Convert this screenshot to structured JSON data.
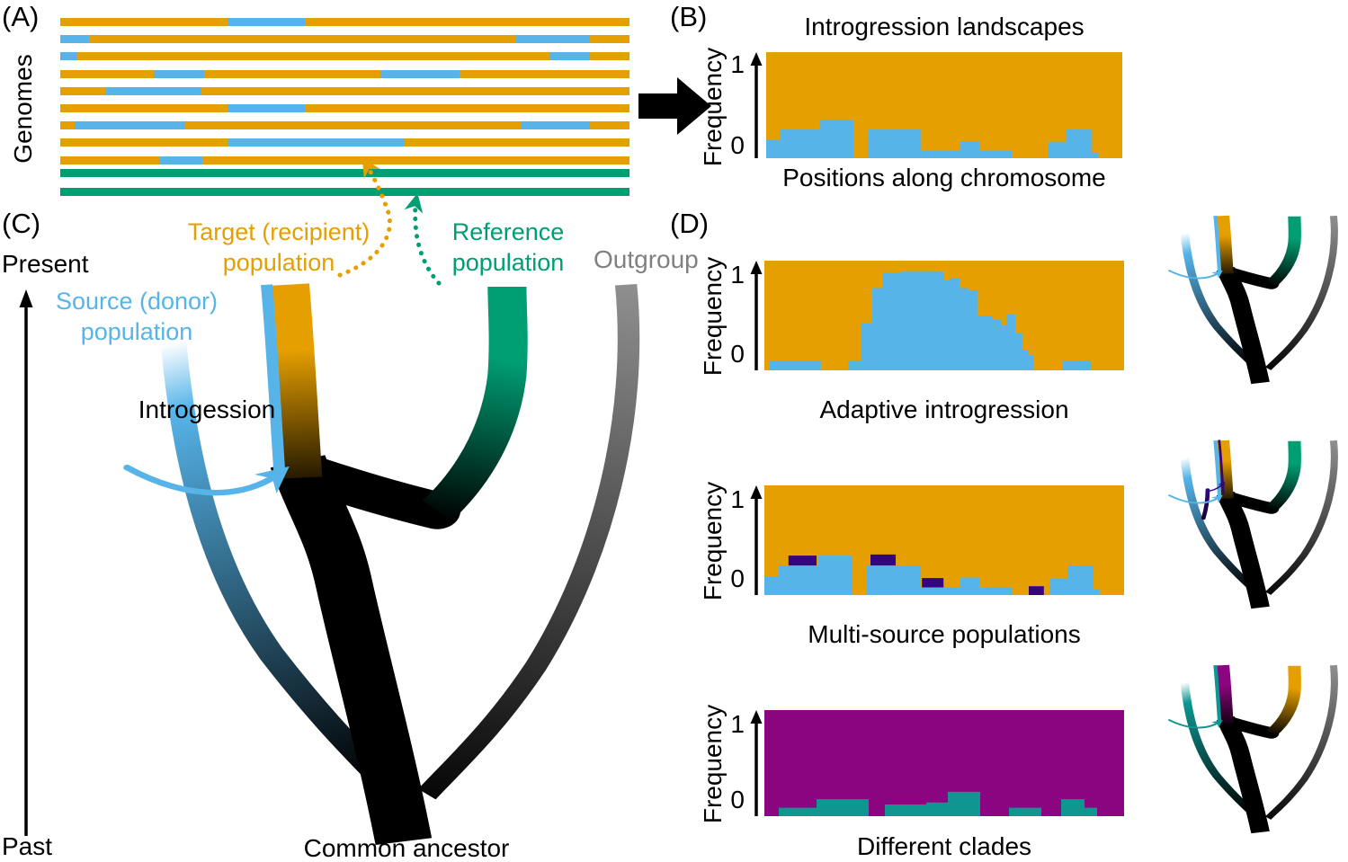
{
  "colors": {
    "orange": "#E69F00",
    "blue": "#56B4E9",
    "green": "#009E73",
    "gray": "#8A8A8A",
    "text_gray": "#808080",
    "purple": "#33067E",
    "magenta": "#8A057F",
    "teal": "#0F9691",
    "black": "#000000"
  },
  "axis": {
    "frequency": "Frequency",
    "one": "1",
    "zero": "0"
  },
  "panel_a": {
    "label": "(A)",
    "axis_label": "Genomes",
    "bar_color": "orange",
    "segment_color": "blue",
    "reference_bar_color": "green",
    "bars": [
      {
        "segments": [
          [
            0.295,
            0.43
          ]
        ]
      },
      {
        "segments": [
          [
            0.0,
            0.05
          ],
          [
            0.8,
            0.93
          ]
        ]
      },
      {
        "segments": [
          [
            0.0,
            0.03
          ],
          [
            0.86,
            0.93
          ]
        ]
      },
      {
        "segments": [
          [
            0.164,
            0.252
          ],
          [
            0.563,
            0.702
          ]
        ]
      },
      {
        "segments": [
          [
            0.08,
            0.248
          ]
        ]
      },
      {
        "segments": [
          [
            0.295,
            0.43
          ]
        ]
      },
      {
        "segments": [
          [
            0.025,
            0.22
          ],
          [
            0.81,
            0.93
          ]
        ]
      },
      {
        "segments": [
          [
            0.295,
            0.605
          ]
        ]
      },
      {
        "segments": [
          [
            0.176,
            0.25
          ]
        ]
      }
    ],
    "reference_bar_count": 2
  },
  "panel_b": {
    "label": "(B)",
    "title": "Introgression landscapes",
    "xlabel": "Positions along chromosome",
    "bg": "orange",
    "fg": "blue",
    "steps": [
      [
        0.0,
        0.04,
        0.17
      ],
      [
        0.04,
        0.15,
        0.27
      ],
      [
        0.15,
        0.245,
        0.36
      ],
      [
        0.245,
        0.285,
        0.0
      ],
      [
        0.285,
        0.435,
        0.27
      ],
      [
        0.435,
        0.545,
        0.07
      ],
      [
        0.545,
        0.6,
        0.16
      ],
      [
        0.6,
        0.69,
        0.07
      ],
      [
        0.69,
        0.793,
        0.0
      ],
      [
        0.793,
        0.843,
        0.15
      ],
      [
        0.843,
        0.915,
        0.27
      ],
      [
        0.915,
        0.932,
        0.05
      ],
      [
        0.932,
        1.0,
        0.0
      ]
    ]
  },
  "panel_c": {
    "label": "(C)",
    "present": "Present",
    "past": "Past",
    "source_line1": "Source (donor)",
    "source_line2": "population",
    "target_line1": "Target (recipient)",
    "target_line2": "population",
    "reference_line1": "Reference",
    "reference_line2": "population",
    "outgroup": "Outgroup",
    "introgression_label": "Introgession",
    "common_ancestor": "Common ancestor",
    "tree": {
      "source": "blue",
      "target": "orange",
      "reference": "green",
      "outgroup": "gray"
    }
  },
  "panel_d": {
    "label": "(D)",
    "charts": [
      {
        "caption": "Adaptive introgression",
        "bg": "orange",
        "fg": "blue",
        "steps": [
          [
            0.0,
            0.015,
            0.0
          ],
          [
            0.015,
            0.157,
            0.09
          ],
          [
            0.157,
            0.233,
            0.0
          ],
          [
            0.233,
            0.27,
            0.09
          ],
          [
            0.27,
            0.3,
            0.43
          ],
          [
            0.3,
            0.33,
            0.75
          ],
          [
            0.33,
            0.38,
            0.89
          ],
          [
            0.38,
            0.5,
            0.9
          ],
          [
            0.5,
            0.517,
            0.82
          ],
          [
            0.517,
            0.543,
            0.84
          ],
          [
            0.543,
            0.568,
            0.75
          ],
          [
            0.568,
            0.592,
            0.73
          ],
          [
            0.592,
            0.633,
            0.5
          ],
          [
            0.633,
            0.66,
            0.46
          ],
          [
            0.66,
            0.673,
            0.41
          ],
          [
            0.673,
            0.698,
            0.51
          ],
          [
            0.698,
            0.717,
            0.34
          ],
          [
            0.717,
            0.735,
            0.18
          ],
          [
            0.735,
            0.75,
            0.14
          ],
          [
            0.75,
            0.829,
            0.0
          ],
          [
            0.829,
            0.907,
            0.09
          ],
          [
            0.907,
            1.0,
            0.0
          ]
        ],
        "tree": {
          "source": "blue",
          "target": "orange",
          "reference": "green",
          "outgroup": "gray"
        }
      },
      {
        "caption": "Multi-source populations",
        "bg": "orange",
        "fg": "blue",
        "overlay_color": "purple",
        "steps": [
          [
            0.0,
            0.04,
            0.17
          ],
          [
            0.04,
            0.15,
            0.27
          ],
          [
            0.15,
            0.245,
            0.36
          ],
          [
            0.245,
            0.285,
            0.0
          ],
          [
            0.285,
            0.435,
            0.27
          ],
          [
            0.435,
            0.545,
            0.07
          ],
          [
            0.545,
            0.6,
            0.16
          ],
          [
            0.6,
            0.69,
            0.07
          ],
          [
            0.69,
            0.793,
            0.0
          ],
          [
            0.793,
            0.843,
            0.15
          ],
          [
            0.843,
            0.915,
            0.27
          ],
          [
            0.915,
            0.932,
            0.05
          ],
          [
            0.932,
            1.0,
            0.0
          ]
        ],
        "overlays": [
          [
            0.067,
            0.145,
            0.27,
            0.36
          ],
          [
            0.295,
            0.365,
            0.27,
            0.37
          ],
          [
            0.438,
            0.498,
            0.07,
            0.155
          ],
          [
            0.735,
            0.777,
            0.0,
            0.08
          ]
        ],
        "tree": {
          "source": "blue",
          "second_source": "purple",
          "target": "orange",
          "reference": "green",
          "outgroup": "gray"
        }
      },
      {
        "caption": "Different clades",
        "bg": "magenta",
        "fg": "teal",
        "steps": [
          [
            0.0,
            0.04,
            0.0
          ],
          [
            0.04,
            0.145,
            0.08
          ],
          [
            0.145,
            0.29,
            0.16
          ],
          [
            0.29,
            0.335,
            0.0
          ],
          [
            0.335,
            0.45,
            0.11
          ],
          [
            0.45,
            0.51,
            0.13
          ],
          [
            0.51,
            0.6,
            0.23
          ],
          [
            0.6,
            0.68,
            0.0
          ],
          [
            0.68,
            0.77,
            0.08
          ],
          [
            0.77,
            0.825,
            0.0
          ],
          [
            0.825,
            0.89,
            0.16
          ],
          [
            0.89,
            0.925,
            0.08
          ],
          [
            0.925,
            1.0,
            0.0
          ]
        ],
        "tree": {
          "source": "teal",
          "target": "magenta",
          "reference": "orange",
          "outgroup": "gray"
        }
      }
    ]
  }
}
